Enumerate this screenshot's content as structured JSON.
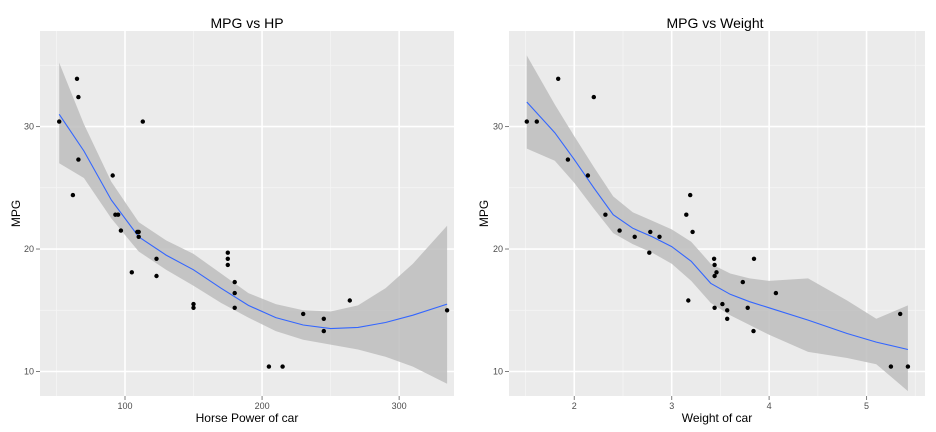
{
  "chart_data": [
    {
      "type": "scatter",
      "title": "MPG vs HP",
      "xlabel": "Horse Power of car",
      "ylabel": "MPG",
      "xlim": [
        38,
        340
      ],
      "ylim": [
        8,
        37.8
      ],
      "x_ticks": [
        100,
        200,
        300
      ],
      "y_ticks": [
        10,
        20,
        30
      ],
      "grid": true,
      "points": [
        [
          52,
          30.4
        ],
        [
          62,
          24.4
        ],
        [
          65,
          33.9
        ],
        [
          66,
          32.4
        ],
        [
          66,
          27.3
        ],
        [
          91,
          26.0
        ],
        [
          93,
          22.8
        ],
        [
          95,
          22.8
        ],
        [
          97,
          21.5
        ],
        [
          105,
          18.1
        ],
        [
          109,
          21.4
        ],
        [
          110,
          21.0
        ],
        [
          110,
          21.4
        ],
        [
          113,
          30.4
        ],
        [
          123,
          17.8
        ],
        [
          123,
          19.2
        ],
        [
          150,
          15.2
        ],
        [
          150,
          15.5
        ],
        [
          175,
          19.2
        ],
        [
          175,
          18.7
        ],
        [
          175,
          19.7
        ],
        [
          180,
          16.4
        ],
        [
          180,
          17.3
        ],
        [
          180,
          15.2
        ],
        [
          205,
          10.4
        ],
        [
          215,
          10.4
        ],
        [
          230,
          14.7
        ],
        [
          245,
          14.3
        ],
        [
          245,
          13.3
        ],
        [
          264,
          15.8
        ],
        [
          335,
          15.0
        ]
      ],
      "smooth": {
        "x": [
          52,
          70,
          90,
          110,
          130,
          150,
          170,
          190,
          210,
          230,
          250,
          270,
          290,
          310,
          335
        ],
        "y": [
          31.0,
          28.0,
          24.0,
          21.0,
          19.5,
          18.3,
          16.8,
          15.4,
          14.4,
          13.8,
          13.5,
          13.6,
          14.0,
          14.6,
          15.5
        ],
        "lower": [
          27.0,
          25.8,
          22.5,
          19.8,
          18.3,
          17.0,
          15.6,
          14.4,
          13.3,
          12.6,
          12.2,
          11.8,
          11.2,
          10.4,
          9.0
        ],
        "upper": [
          35.2,
          30.2,
          25.5,
          22.2,
          20.7,
          19.6,
          18.0,
          16.4,
          15.5,
          15.0,
          14.9,
          15.4,
          16.8,
          18.8,
          21.9
        ]
      }
    },
    {
      "type": "scatter",
      "title": "MPG vs Weight",
      "xlabel": "Weight of car",
      "ylabel": "MPG",
      "xlim": [
        1.33,
        5.6
      ],
      "ylim": [
        8,
        37.8
      ],
      "x_ticks": [
        2,
        3,
        4,
        5
      ],
      "y_ticks": [
        10,
        20,
        30
      ],
      "grid": true,
      "points": [
        [
          1.513,
          30.4
        ],
        [
          1.615,
          30.4
        ],
        [
          1.835,
          33.9
        ],
        [
          1.935,
          27.3
        ],
        [
          2.14,
          26.0
        ],
        [
          2.2,
          32.4
        ],
        [
          2.32,
          22.8
        ],
        [
          2.465,
          21.5
        ],
        [
          2.62,
          21.0
        ],
        [
          2.77,
          19.7
        ],
        [
          2.78,
          21.4
        ],
        [
          2.875,
          21.0
        ],
        [
          3.15,
          22.8
        ],
        [
          3.17,
          15.8
        ],
        [
          3.19,
          24.4
        ],
        [
          3.215,
          21.4
        ],
        [
          3.435,
          19.2
        ],
        [
          3.44,
          18.7
        ],
        [
          3.44,
          17.8
        ],
        [
          3.44,
          15.2
        ],
        [
          3.46,
          18.1
        ],
        [
          3.52,
          15.5
        ],
        [
          3.57,
          14.3
        ],
        [
          3.57,
          15.0
        ],
        [
          3.73,
          17.3
        ],
        [
          3.78,
          15.2
        ],
        [
          3.84,
          13.3
        ],
        [
          3.845,
          19.2
        ],
        [
          4.07,
          16.4
        ],
        [
          5.25,
          10.4
        ],
        [
          5.345,
          14.7
        ],
        [
          5.424,
          10.4
        ]
      ],
      "smooth": {
        "x": [
          1.513,
          1.8,
          2.0,
          2.2,
          2.4,
          2.6,
          2.8,
          3.0,
          3.2,
          3.4,
          3.6,
          3.8,
          4.0,
          4.4,
          4.8,
          5.1,
          5.424
        ],
        "y": [
          32.0,
          29.5,
          27.3,
          25.0,
          22.8,
          21.7,
          21.0,
          20.2,
          19.0,
          17.2,
          16.3,
          15.7,
          15.2,
          14.2,
          13.1,
          12.4,
          11.8
        ],
        "lower": [
          28.2,
          27.2,
          25.4,
          23.3,
          21.3,
          20.4,
          19.7,
          18.8,
          17.4,
          15.6,
          14.6,
          13.8,
          13.0,
          11.6,
          11.1,
          10.6,
          8.4
        ],
        "upper": [
          35.8,
          31.8,
          29.2,
          26.7,
          24.3,
          23.0,
          22.3,
          21.6,
          20.6,
          18.8,
          18.0,
          17.6,
          17.4,
          17.6,
          15.8,
          14.3,
          15.4
        ]
      }
    }
  ],
  "colors": {
    "panel_bg": "#ebebeb",
    "grid_major": "#ffffff",
    "grid_minor": "#f5f5f5",
    "ribbon": "#bdbdbd",
    "smooth_line": "#3366ff",
    "point": "#000000",
    "tick_label": "#4d4d4d"
  }
}
